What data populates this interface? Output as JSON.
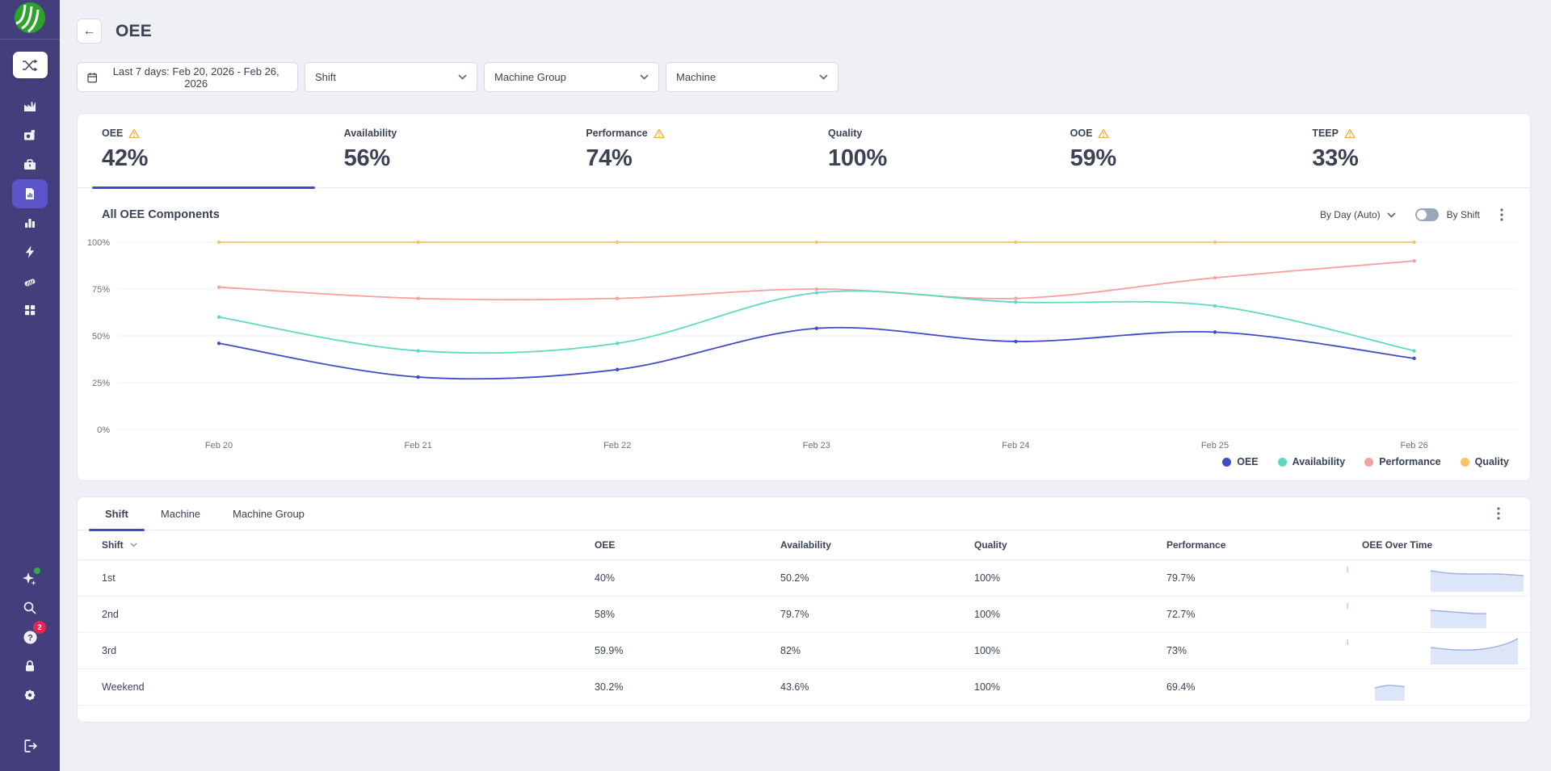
{
  "sidebar": {
    "icons": [
      "app-logo",
      "shuffle",
      "factory",
      "machines",
      "packages",
      "reports",
      "analytics",
      "energy",
      "parts",
      "apps",
      "ai-assistant",
      "search",
      "help",
      "lock",
      "settings",
      "logout"
    ],
    "active_icon": "reports",
    "help_badge": "2",
    "colors": {
      "background": "#433f7d",
      "active_item": "#5b55c9",
      "logo_green": "#2da32d"
    }
  },
  "header": {
    "title": "OEE",
    "back_label": "←"
  },
  "filters": {
    "date_range": "Last 7 days: Feb 20, 2026 - Feb 26, 2026",
    "shift_placeholder": "Shift",
    "machine_group_placeholder": "Machine Group",
    "machine_placeholder": "Machine"
  },
  "kpis": {
    "items": [
      {
        "label": "OEE",
        "value": "42%",
        "warning": true,
        "selected": true
      },
      {
        "label": "Availability",
        "value": "56%",
        "warning": false,
        "selected": false
      },
      {
        "label": "Performance",
        "value": "74%",
        "warning": true,
        "selected": false
      },
      {
        "label": "Quality",
        "value": "100%",
        "warning": false,
        "selected": false
      },
      {
        "label": "OOE",
        "value": "59%",
        "warning": true,
        "selected": false
      },
      {
        "label": "TEEP",
        "value": "33%",
        "warning": true,
        "selected": false
      }
    ]
  },
  "chart_section": {
    "title": "All OEE Components",
    "granularity_label": "By Day (Auto)",
    "toggle_label": "By Shift",
    "toggle_on": false
  },
  "chart_data": {
    "type": "line",
    "x": [
      "Feb 20",
      "Feb 21",
      "Feb 22",
      "Feb 23",
      "Feb 24",
      "Feb 25",
      "Feb 26"
    ],
    "yticks": [
      "100%",
      "75%",
      "50%",
      "25%",
      "0%"
    ],
    "ylim": [
      0,
      100
    ],
    "grid": true,
    "legend_position": "bottom-right",
    "series": [
      {
        "name": "OEE",
        "color": "#3f4cc5",
        "values": [
          46,
          28,
          32,
          54,
          47,
          52,
          38
        ]
      },
      {
        "name": "Availability",
        "color": "#5fd8c4",
        "values": [
          60,
          42,
          46,
          73,
          68,
          66,
          42
        ]
      },
      {
        "name": "Performance",
        "color": "#fa9f9f",
        "values": [
          76,
          70,
          70,
          75,
          70,
          81,
          90
        ]
      },
      {
        "name": "Quality",
        "color": "#f6c266",
        "values": [
          100,
          100,
          100,
          100,
          100,
          100,
          100
        ]
      }
    ]
  },
  "table": {
    "tabs": [
      {
        "label": "Shift",
        "active": true
      },
      {
        "label": "Machine",
        "active": false
      },
      {
        "label": "Machine Group",
        "active": false
      }
    ],
    "columns": [
      "Shift",
      "OEE",
      "Availability",
      "Quality",
      "Performance",
      "OEE Over Time"
    ],
    "sorted_column": "Shift",
    "rows": [
      {
        "shift": "1st",
        "oee": "40%",
        "availability": "50.2%",
        "quality": "100%",
        "performance": "79.7%",
        "spark": {
          "tick": 0.05,
          "points": [
            [
              0.5,
              11
            ],
            [
              0.6,
              14
            ],
            [
              0.72,
              15
            ],
            [
              0.86,
              15
            ],
            [
              1.0,
              17
            ]
          ]
        }
      },
      {
        "shift": "2nd",
        "oee": "58%",
        "availability": "79.7%",
        "quality": "100%",
        "performance": "72.7%",
        "spark": {
          "tick": 0.05,
          "points": [
            [
              0.5,
              15
            ],
            [
              0.62,
              17
            ],
            [
              0.74,
              19
            ],
            [
              0.8,
              19
            ]
          ]
        }
      },
      {
        "shift": "3rd",
        "oee": "59.9%",
        "availability": "82%",
        "quality": "100%",
        "performance": "73%",
        "spark": {
          "tick": 0.05,
          "points": [
            [
              0.5,
              16
            ],
            [
              0.64,
              19
            ],
            [
              0.78,
              18
            ],
            [
              0.9,
              12
            ],
            [
              0.97,
              5
            ]
          ]
        }
      },
      {
        "shift": "Weekend",
        "oee": "30.2%",
        "availability": "43.6%",
        "quality": "100%",
        "performance": "69.4%",
        "spark": {
          "points": [
            [
              0.2,
              21
            ],
            [
              0.27,
              18
            ],
            [
              0.34,
              19
            ],
            [
              0.36,
              20
            ]
          ]
        }
      }
    ]
  }
}
